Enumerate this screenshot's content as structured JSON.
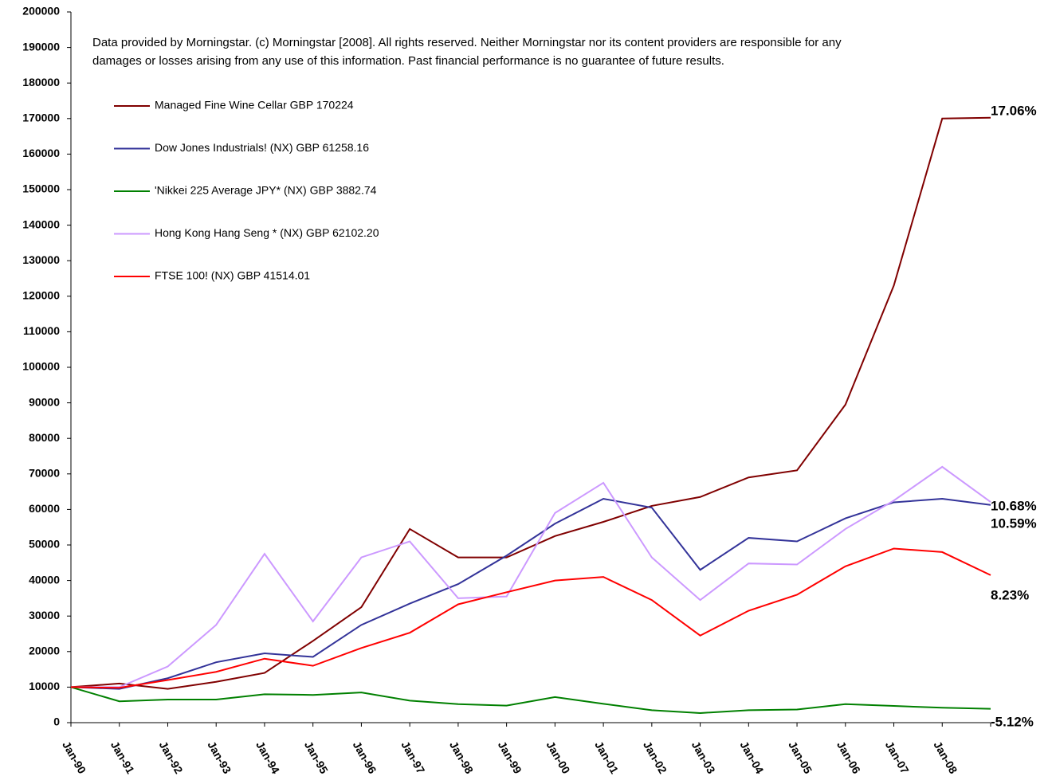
{
  "chart_data": {
    "type": "line",
    "note": [
      "Data provided by Morningstar. (c) Morningstar [2008]. All rights reserved. Neither Morningstar nor its content providers are responsible for any",
      "damages or losses arising from any use of this information. Past financial performance is no guarantee of future results."
    ],
    "categories": [
      "Jan-90",
      "Jan-91",
      "Jan-92",
      "Jan-93",
      "Jan-94",
      "Jan-95",
      "Jan-96",
      "Jan-97",
      "Jan-98",
      "Jan-99",
      "Jan-00",
      "Jan-01",
      "Jan-02",
      "Jan-03",
      "Jan-04",
      "Jan-05",
      "Jan-06",
      "Jan-07",
      "Jan-08",
      null
    ],
    "series": [
      {
        "name": "Managed Fine Wine Cellar GBP 170224",
        "color": "#800000",
        "values": [
          10000,
          11000,
          9500,
          11500,
          14000,
          23000,
          32500,
          54500,
          46500,
          46500,
          52500,
          56500,
          61000,
          63500,
          69000,
          71000,
          89500,
          123000,
          170000,
          170224
        ]
      },
      {
        "name": "Dow Jones Industrials! (NX)  GBP  61258.16",
        "color": "#333399",
        "values": [
          10000,
          9500,
          12500,
          17000,
          19500,
          18500,
          27500,
          33500,
          39000,
          47000,
          56000,
          63000,
          60500,
          43000,
          52000,
          51000,
          57500,
          62000,
          63000,
          61258.16
        ]
      },
      {
        "name": "'Nikkei 225 Average JPY* (NX)  GBP  3882.74",
        "color": "#008000",
        "values": [
          10000,
          6000,
          6500,
          6500,
          8000,
          7800,
          8500,
          6200,
          5200,
          4800,
          7200,
          5300,
          3500,
          2700,
          3500,
          3700,
          5200,
          4700,
          4200,
          3882.74
        ]
      },
      {
        "name": "Hong Kong Hang Seng * (NX)  GBP  62102.20",
        "color": "#cc99ff",
        "values": [
          10000,
          10000,
          15800,
          27500,
          47500,
          28500,
          46500,
          51000,
          35000,
          35500,
          59000,
          67500,
          46500,
          34500,
          44800,
          44500,
          54500,
          62500,
          72000,
          62102.2
        ]
      },
      {
        "name": "FTSE 100! (NX)  GBP  41514.01",
        "color": "#ff0000",
        "values": [
          10000,
          9800,
          12000,
          14300,
          18000,
          16000,
          21000,
          25300,
          33300,
          36700,
          40000,
          41000,
          34500,
          24500,
          31500,
          36000,
          44000,
          49000,
          48000,
          41514.01
        ]
      }
    ],
    "annotations": [
      "17.06%",
      "10.68%",
      "10.59%",
      "8.23%",
      "-5.12%"
    ],
    "ylim": [
      0,
      200000
    ],
    "yticks": [
      0,
      10000,
      20000,
      30000,
      40000,
      50000,
      60000,
      70000,
      80000,
      90000,
      100000,
      110000,
      120000,
      130000,
      140000,
      150000,
      160000,
      170000,
      180000,
      190000,
      200000
    ],
    "grid": false
  }
}
